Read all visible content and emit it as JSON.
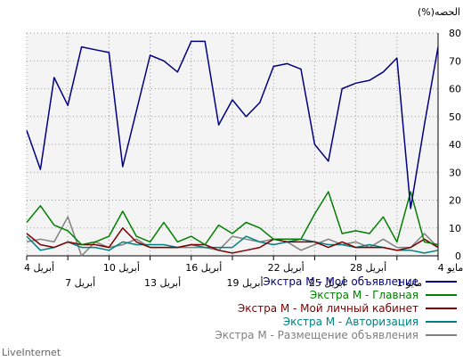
{
  "brand": "LiveInternet",
  "chart_data": {
    "type": "line",
    "ylabel": "(%)الحصه",
    "ylim": [
      0,
      80
    ],
    "y_ticks": [
      "0",
      "10",
      "20",
      "30",
      "40",
      "50",
      "60",
      "70",
      "80"
    ],
    "x_tick_labels": [
      {
        "label": "4 مايو",
        "row": 0
      },
      {
        "label": "1 مايو",
        "row": 1
      },
      {
        "label": "28 أبريل",
        "row": 0
      },
      {
        "label": "25 أبريل",
        "row": 1
      },
      {
        "label": "22 أبريل",
        "row": 0
      },
      {
        "label": "19 أبريل",
        "row": 1
      },
      {
        "label": "16 أبريل",
        "row": 0
      },
      {
        "label": "13 أبريل",
        "row": 1
      },
      {
        "label": "10 أبريل",
        "row": 0
      },
      {
        "label": "7 أبريل",
        "row": 1
      },
      {
        "label": "4 أبريل",
        "row": 0
      }
    ],
    "grid": true,
    "legend_position": "bottom-right",
    "series": [
      {
        "name": "Экстра М - Мое объявление",
        "color": "#000080",
        "values": [
          45,
          31,
          64,
          54,
          75,
          74,
          73,
          32,
          52,
          72,
          70,
          66,
          77,
          77,
          47,
          56,
          50,
          55,
          68,
          69,
          67,
          40,
          34,
          60,
          62,
          63,
          66,
          71,
          17,
          47,
          75
        ]
      },
      {
        "name": "Экстра М - Главная",
        "color": "#008000",
        "values": [
          12,
          18,
          11,
          9,
          4,
          5,
          7,
          16,
          7,
          5,
          12,
          5,
          7,
          4,
          11,
          8,
          12,
          10,
          6,
          6,
          6,
          15,
          23,
          8,
          9,
          8,
          14,
          5,
          23,
          5,
          4
        ]
      },
      {
        "name": "Экстра М - Мой личный кабинет",
        "color": "#800000",
        "values": [
          8,
          4,
          3,
          5,
          4,
          4,
          3,
          10,
          5,
          3,
          3,
          3,
          4,
          4,
          2,
          1,
          2,
          3,
          6,
          5,
          5,
          5,
          3,
          5,
          3,
          3,
          3,
          2,
          3,
          6,
          3
        ]
      },
      {
        "name": "Экстра М - Авторизация",
        "color": "#008080",
        "values": [
          7,
          2,
          3,
          5,
          3,
          3,
          2,
          5,
          4,
          4,
          4,
          3,
          4,
          3,
          3,
          3,
          7,
          5,
          4,
          5,
          6,
          5,
          4,
          4,
          3,
          4,
          3,
          2,
          2,
          1,
          2
        ]
      },
      {
        "name": "Экстра М - Размещение объявления",
        "color": "#808080",
        "values": [
          5,
          6,
          5,
          14,
          0,
          5,
          3,
          4,
          6,
          3,
          3,
          3,
          3,
          3,
          2,
          7,
          6,
          5,
          6,
          5,
          2,
          4,
          6,
          4,
          5,
          3,
          6,
          3,
          3,
          8,
          3
        ]
      }
    ]
  }
}
